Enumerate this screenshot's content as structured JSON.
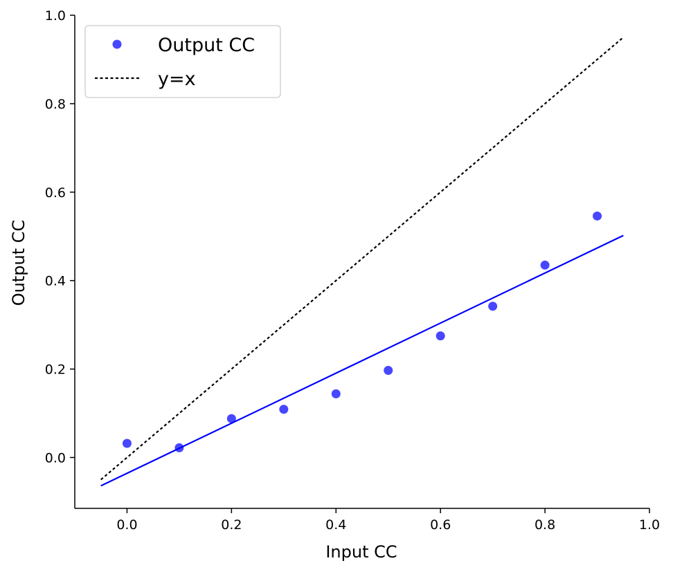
{
  "chart_data": {
    "type": "scatter",
    "xlabel": "Input CC",
    "ylabel": "Output CC",
    "xlim": [
      -0.1,
      1.0
    ],
    "ylim": [
      -0.115,
      1.0
    ],
    "xticks": [
      "0.0",
      "0.2",
      "0.4",
      "0.6",
      "0.8",
      "1.0"
    ],
    "yticks": [
      "0.0",
      "0.2",
      "0.4",
      "0.6",
      "0.8",
      "1.0"
    ],
    "grid": false,
    "legend_position": "top-left",
    "series": [
      {
        "name": "Output CC",
        "kind": "points",
        "color": "#0000ff",
        "x": [
          0.0,
          0.1,
          0.2,
          0.3,
          0.4,
          0.5,
          0.6,
          0.7,
          0.8,
          0.9
        ],
        "y": [
          0.032,
          0.022,
          0.088,
          0.109,
          0.144,
          0.197,
          0.275,
          0.342,
          0.435,
          0.546
        ]
      },
      {
        "kind": "fit-line",
        "color": "#0000ff",
        "x": [
          -0.05,
          0.95
        ],
        "y": [
          -0.064,
          0.502
        ]
      },
      {
        "name": "y=x",
        "kind": "dotted-line",
        "color": "#000000",
        "x": [
          -0.05,
          0.95
        ],
        "y": [
          -0.05,
          0.95
        ]
      }
    ]
  }
}
